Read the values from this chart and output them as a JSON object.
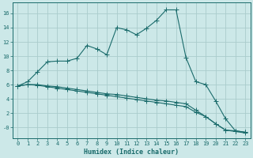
{
  "title": "",
  "xlabel": "Humidex (Indice chaleur)",
  "background_color": "#cce8e8",
  "grid_color": "#aacccc",
  "line_color": "#1a6b6b",
  "xlim": [
    -0.5,
    23.5
  ],
  "ylim": [
    -1.5,
    17.5
  ],
  "yticks": [
    0,
    2,
    4,
    6,
    8,
    10,
    12,
    14,
    16
  ],
  "ytick_labels": [
    "-0",
    "2",
    "4",
    "6",
    "8",
    "10",
    "12",
    "14",
    "16"
  ],
  "xticks": [
    0,
    1,
    2,
    3,
    4,
    5,
    6,
    7,
    8,
    9,
    10,
    11,
    12,
    13,
    14,
    15,
    16,
    17,
    18,
    19,
    20,
    21,
    22,
    23
  ],
  "series1_x": [
    0,
    1,
    2,
    3,
    4,
    5,
    6,
    7,
    8,
    9,
    10,
    11,
    12,
    13,
    14,
    15,
    16,
    17,
    18,
    19,
    20,
    21,
    22,
    23
  ],
  "series1_y": [
    5.8,
    6.4,
    7.8,
    9.2,
    9.3,
    9.3,
    9.7,
    11.5,
    11.0,
    10.2,
    14.0,
    13.7,
    13.0,
    13.9,
    15.0,
    16.5,
    16.5,
    9.8,
    6.4,
    6.0,
    3.7,
    1.2,
    -0.5,
    -0.7
  ],
  "series2_x": [
    0,
    1,
    2,
    3,
    4,
    5,
    6,
    7,
    8,
    9,
    10,
    11,
    12,
    13,
    14,
    15,
    16,
    17,
    18,
    19,
    20,
    21,
    22,
    23
  ],
  "series2_y": [
    5.8,
    6.0,
    6.0,
    5.8,
    5.7,
    5.5,
    5.3,
    5.1,
    4.9,
    4.7,
    4.6,
    4.4,
    4.2,
    4.0,
    3.8,
    3.7,
    3.5,
    3.3,
    2.4,
    1.5,
    0.5,
    -0.4,
    -0.5,
    -0.7
  ],
  "series3_x": [
    0,
    1,
    2,
    3,
    4,
    5,
    6,
    7,
    8,
    9,
    10,
    11,
    12,
    13,
    14,
    15,
    16,
    17,
    18,
    19,
    20,
    21,
    22,
    23
  ],
  "series3_y": [
    5.8,
    6.0,
    5.9,
    5.7,
    5.5,
    5.3,
    5.1,
    4.9,
    4.7,
    4.5,
    4.3,
    4.1,
    3.9,
    3.7,
    3.5,
    3.3,
    3.1,
    2.9,
    2.1,
    1.5,
    0.5,
    -0.4,
    -0.6,
    -0.8
  ],
  "xlabel_fontsize": 6,
  "tick_fontsize": 5,
  "linewidth": 0.8,
  "markersize": 2.0
}
